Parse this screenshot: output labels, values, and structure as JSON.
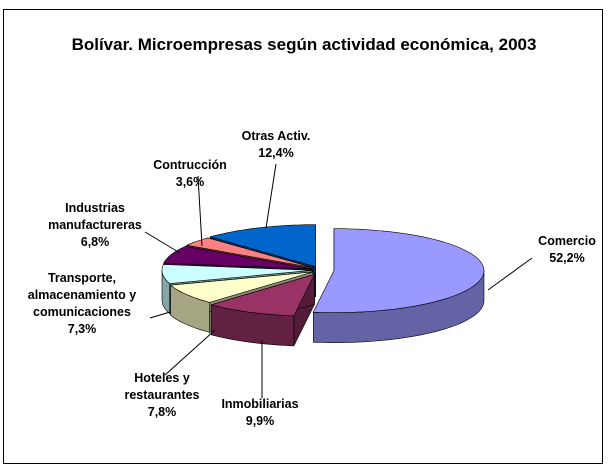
{
  "chart_data": {
    "type": "pie3d",
    "title": "Bolívar. Microempresas según actividad económica, 2003",
    "categories": [
      "Comercio",
      "Inmobiliarias",
      "Hoteles y restaurantes",
      "Transporte, almacenamiento y comunicaciones",
      "Industrias manufactureras",
      "Contrucción",
      "Otras Activ."
    ],
    "values": [
      52.2,
      9.9,
      7.8,
      7.3,
      6.8,
      3.6,
      12.4
    ],
    "value_labels": [
      "52,2%",
      "9,9%",
      "7,8%",
      "7,3%",
      "6,8%",
      "3,6%",
      "12,4%"
    ],
    "colors": [
      "#9999ff",
      "#993366",
      "#ffffcc",
      "#ccffff",
      "#660066",
      "#ff8080",
      "#0066cc"
    ]
  }
}
